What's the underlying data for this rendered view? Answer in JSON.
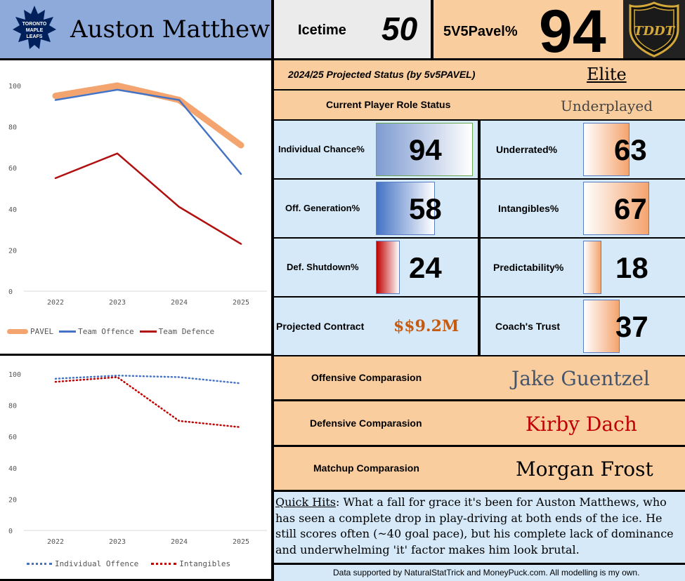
{
  "header": {
    "player_name": "Auston Matthews",
    "team_logo_text": "TORONTO MAPLE LEAFS",
    "icetime_label": "Icetime",
    "icetime_value": "50",
    "pavel_label": "5V5Pavel%",
    "pavel_value": "94",
    "league_logo_text": "TDDT"
  },
  "status": {
    "projected_label": "2024/25 Projected Status (by 5v5PAVEL)",
    "projected_value": "Elite",
    "role_label": "Current Player Role Status",
    "role_value": "Underplayed"
  },
  "metrics": [
    {
      "label": "Individual Chance%",
      "value": "94",
      "fill": 0.94
    },
    {
      "label": "Underrated%",
      "value": "63",
      "fill": 0.63
    },
    {
      "label": "Off. Generation%",
      "value": "58",
      "fill": 0.58
    },
    {
      "label": "Intangibles%",
      "value": "67",
      "fill": 0.67
    },
    {
      "label": "Def. Shutdown%",
      "value": "24",
      "fill": 0.24
    },
    {
      "label": "Predictability%",
      "value": "18",
      "fill": 0.18
    },
    {
      "label": "Projected Contract",
      "value": "$$9.2M"
    },
    {
      "label": "Coach's Trust",
      "value": "37",
      "fill": 0.37
    }
  ],
  "comparisons": [
    {
      "label": "Offensive Comparasion",
      "value": "Jake Guentzel",
      "color": "#44546a"
    },
    {
      "label": "Defensive Comparasion",
      "value": "Kirby Dach",
      "color": "#c00000"
    },
    {
      "label": "Matchup Comparasion",
      "value": "Morgan Frost",
      "color": "#000000"
    }
  ],
  "notes": {
    "quick_hits_title": "Quick Hits",
    "quick_hits_text": ": What a fall for grace it's been for Auston Matthews, who has seen a complete drop in play-driving at both ends of the ice. He still scores often (~40 goal pace), but his complete lack of dominance and underwhelming 'it' factor makes him look brutal.",
    "footer": "Data supported by NaturalStatTrick and MoneyPuck.com. All modelling is my own."
  },
  "chart_data": [
    {
      "type": "line",
      "title": "",
      "x": [
        "2022",
        "2023",
        "2024",
        "2025"
      ],
      "ylim": [
        0,
        100
      ],
      "yticks": [
        "0",
        "20",
        "40",
        "60",
        "80",
        "100"
      ],
      "series": [
        {
          "name": "PAVEL",
          "values": [
            95,
            100,
            93,
            71
          ],
          "color": "#f4a46e",
          "style": "thick"
        },
        {
          "name": "Team Offence",
          "values": [
            93,
            98,
            93,
            57
          ],
          "color": "#4472c4",
          "style": "solid"
        },
        {
          "name": "Team Defence",
          "values": [
            55,
            67,
            41,
            23
          ],
          "color": "#b01010",
          "style": "solid"
        }
      ]
    },
    {
      "type": "line",
      "title": "",
      "x": [
        "2022",
        "2023",
        "2024",
        "2025"
      ],
      "ylim": [
        0,
        100
      ],
      "yticks": [
        "0",
        "20",
        "40",
        "60",
        "80",
        "100"
      ],
      "series": [
        {
          "name": "Individual Offence",
          "values": [
            97,
            99,
            98,
            94
          ],
          "color": "#4472c4",
          "style": "dotted"
        },
        {
          "name": "Intangibles",
          "values": [
            95,
            98,
            70,
            66
          ],
          "color": "#c00000",
          "style": "dotted"
        }
      ]
    }
  ]
}
